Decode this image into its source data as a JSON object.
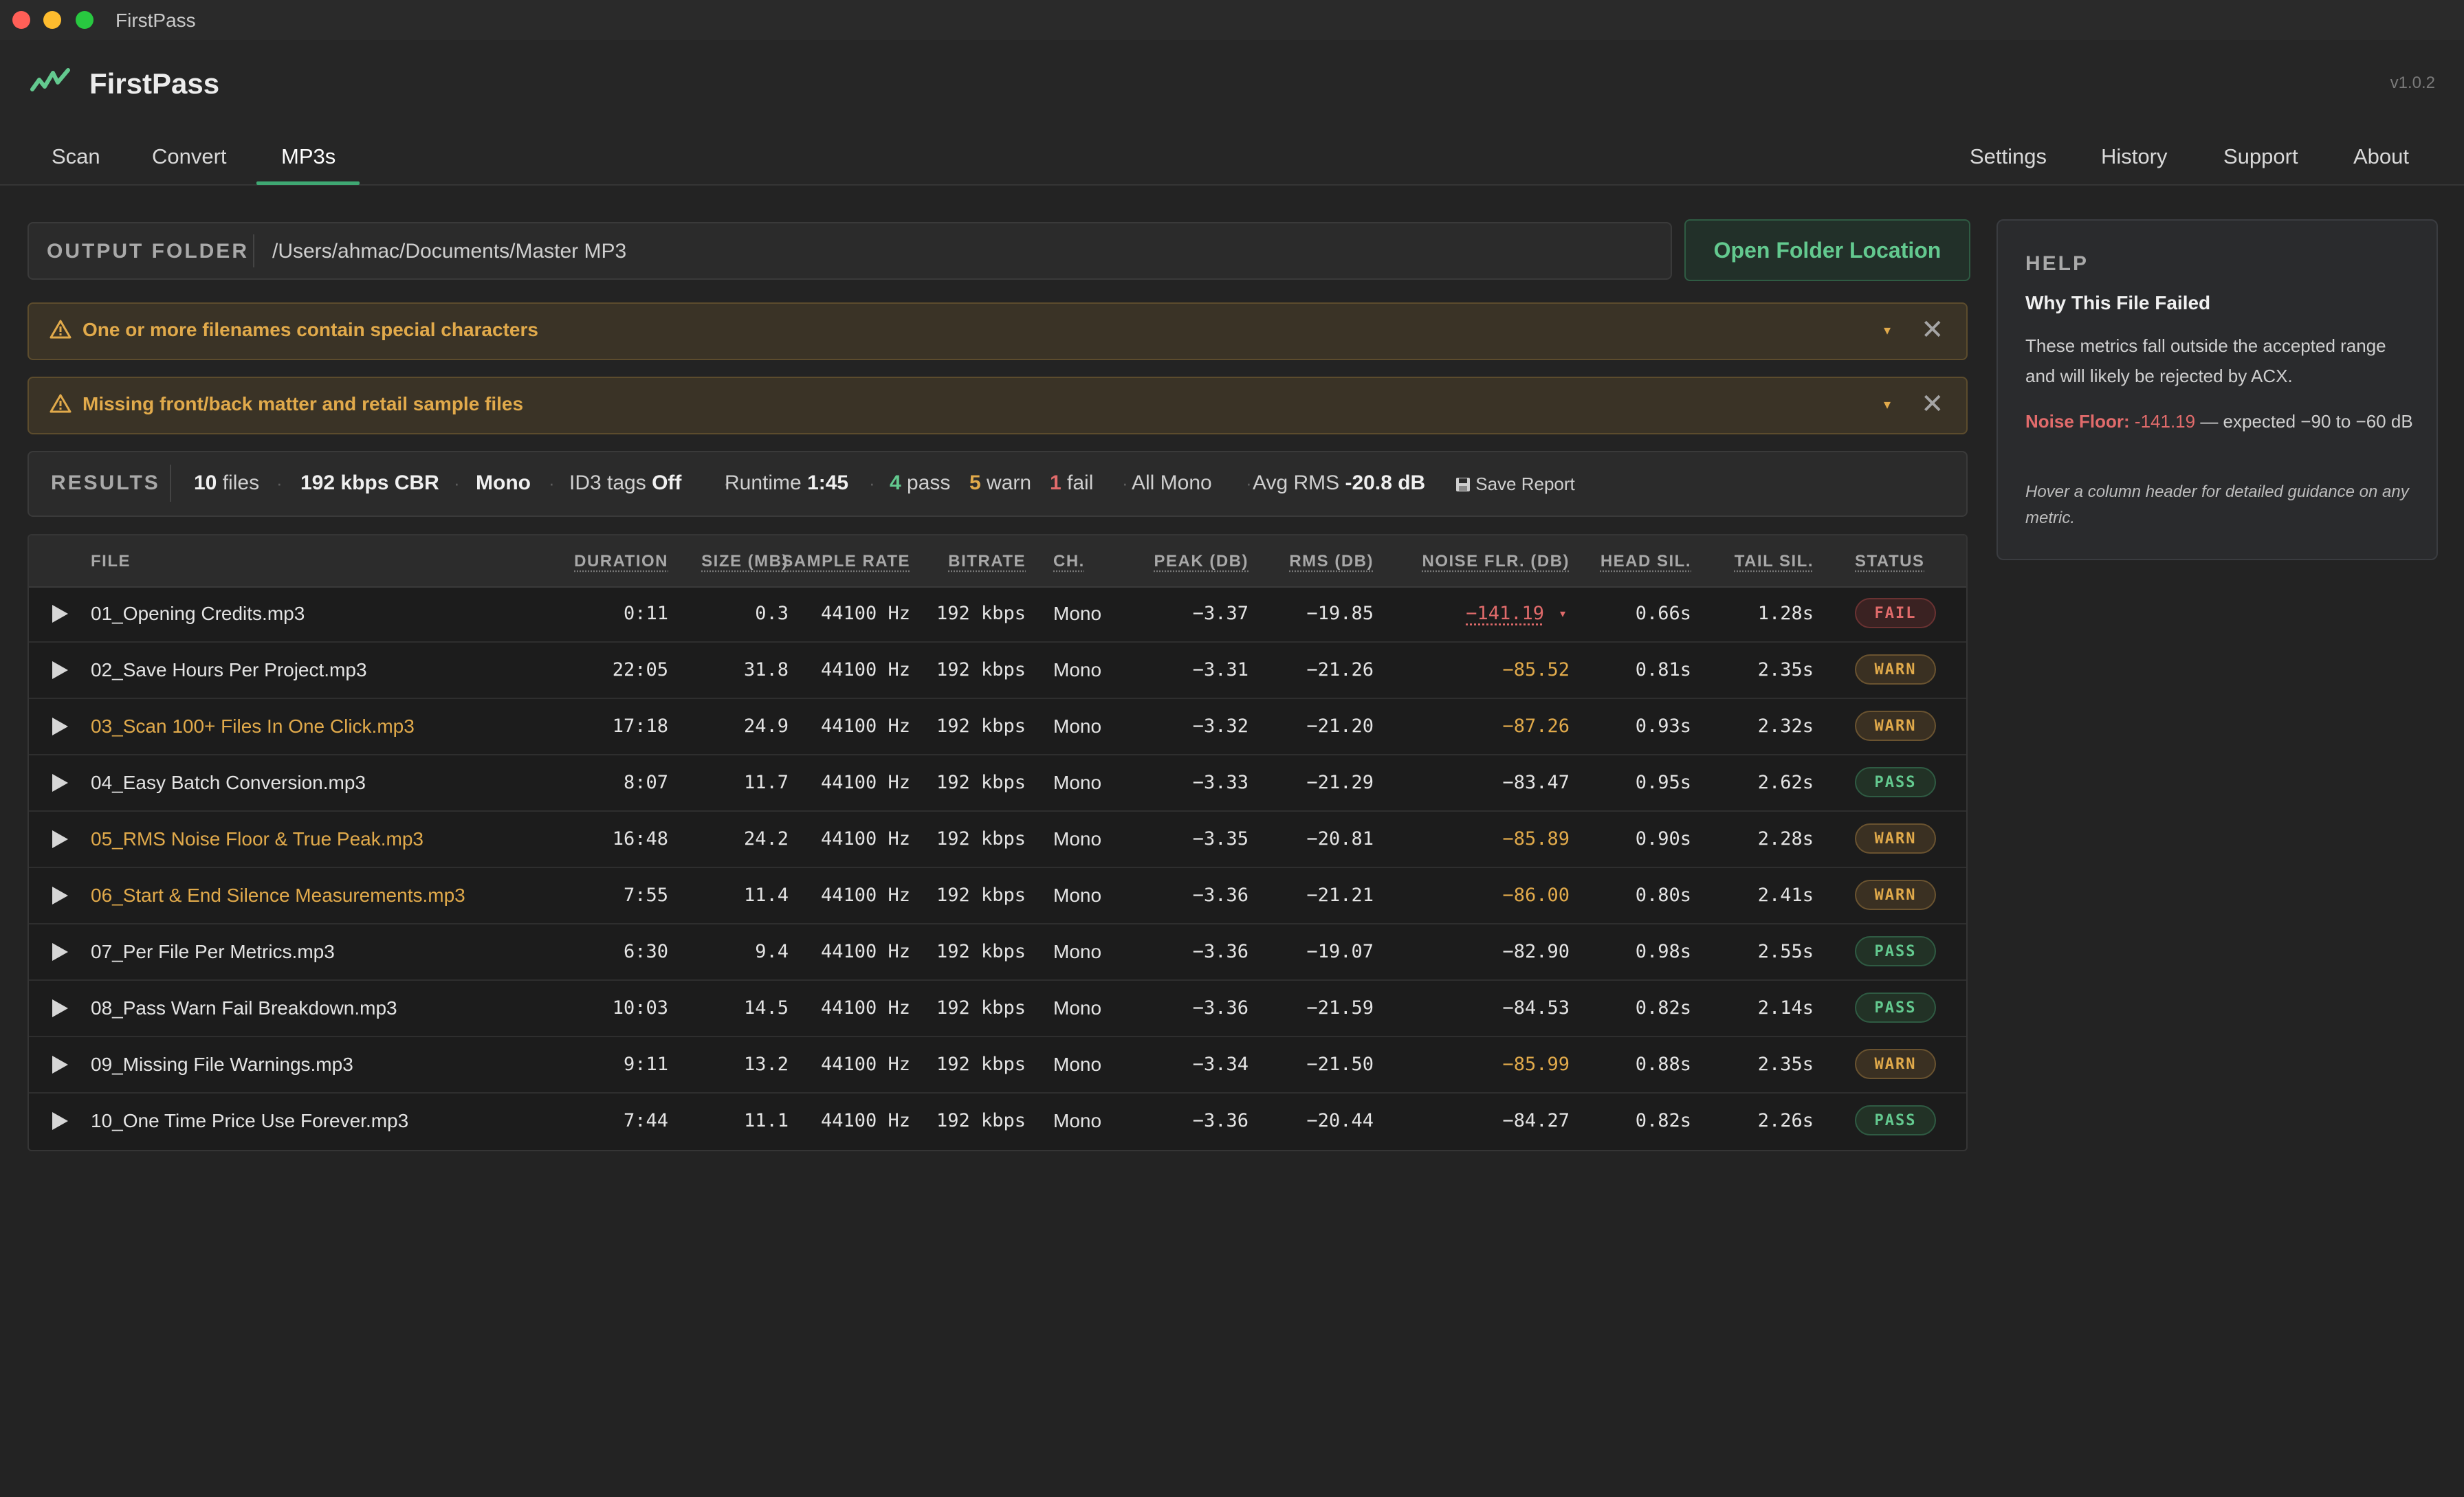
{
  "window": {
    "title": "FirstPass"
  },
  "app": {
    "name": "FirstPass",
    "version": "v1.0.2"
  },
  "tabs": {
    "left": [
      {
        "label": "Scan"
      },
      {
        "label": "Convert"
      },
      {
        "label": "MP3s",
        "active": true
      }
    ],
    "right": [
      {
        "label": "Settings"
      },
      {
        "label": "History"
      },
      {
        "label": "Support"
      },
      {
        "label": "About"
      }
    ]
  },
  "output_folder": {
    "label": "OUTPUT FOLDER",
    "path": "/Users/ahmac/Documents/Master MP3",
    "open_button": "Open Folder Location"
  },
  "warnings": [
    {
      "text": "One or more filenames contain special characters",
      "caret": "▾",
      "close": "✕"
    },
    {
      "text": "Missing front/back matter and retail sample files",
      "caret": "▾",
      "close": "✕"
    }
  ],
  "results": {
    "label": "RESULTS",
    "files_count": "10",
    "files_word": "files",
    "bitrate": "192 kbps CBR",
    "channels": "Mono",
    "id3_label": "ID3 tags",
    "id3_value": "Off",
    "runtime_label": "Runtime",
    "runtime_value": "1:45",
    "pass_count": "4",
    "pass_word": "pass",
    "warn_count": "5",
    "warn_word": "warn",
    "fail_count": "1",
    "fail_word": "fail",
    "all_mono": "All Mono",
    "avg_rms_label": "Avg RMS",
    "avg_rms_value": "-20.8 dB",
    "save_report": "Save Report"
  },
  "table": {
    "headers": {
      "file": "FILE",
      "duration": "DURATION",
      "size": "SIZE (MB)",
      "sample_rate": "SAMPLE RATE",
      "bitrate": "BITRATE",
      "ch": "CH.",
      "peak": "PEAK (DB)",
      "rms": "RMS (DB)",
      "noise": "NOISE FLR. (DB)",
      "head": "HEAD SIL.",
      "tail": "TAIL SIL.",
      "status": "STATUS"
    },
    "rows": [
      {
        "file": "01_Opening Credits.mp3",
        "duration": "0:11",
        "size": "0.3",
        "sample_rate": "44100 Hz",
        "bitrate": "192 kbps",
        "ch": "Mono",
        "peak": "−3.37",
        "rms": "−19.85",
        "noise": "−141.19",
        "noise_caret": "▾",
        "head": "0.66s",
        "tail": "1.28s",
        "status": "FAIL",
        "flagged_name": false
      },
      {
        "file": "02_Save Hours Per Project.mp3",
        "duration": "22:05",
        "size": "31.8",
        "sample_rate": "44100 Hz",
        "bitrate": "192 kbps",
        "ch": "Mono",
        "peak": "−3.31",
        "rms": "−21.26",
        "noise": "−85.52",
        "head": "0.81s",
        "tail": "2.35s",
        "status": "WARN",
        "flagged_name": false
      },
      {
        "file": "03_Scan 100+ Files In One Click.mp3",
        "duration": "17:18",
        "size": "24.9",
        "sample_rate": "44100 Hz",
        "bitrate": "192 kbps",
        "ch": "Mono",
        "peak": "−3.32",
        "rms": "−21.20",
        "noise": "−87.26",
        "head": "0.93s",
        "tail": "2.32s",
        "status": "WARN",
        "flagged_name": true
      },
      {
        "file": "04_Easy Batch Conversion.mp3",
        "duration": "8:07",
        "size": "11.7",
        "sample_rate": "44100 Hz",
        "bitrate": "192 kbps",
        "ch": "Mono",
        "peak": "−3.33",
        "rms": "−21.29",
        "noise": "−83.47",
        "head": "0.95s",
        "tail": "2.62s",
        "status": "PASS",
        "flagged_name": false
      },
      {
        "file": "05_RMS Noise Floor & True Peak.mp3",
        "duration": "16:48",
        "size": "24.2",
        "sample_rate": "44100 Hz",
        "bitrate": "192 kbps",
        "ch": "Mono",
        "peak": "−3.35",
        "rms": "−20.81",
        "noise": "−85.89",
        "head": "0.90s",
        "tail": "2.28s",
        "status": "WARN",
        "flagged_name": true
      },
      {
        "file": "06_Start & End Silence Measurements.mp3",
        "duration": "7:55",
        "size": "11.4",
        "sample_rate": "44100 Hz",
        "bitrate": "192 kbps",
        "ch": "Mono",
        "peak": "−3.36",
        "rms": "−21.21",
        "noise": "−86.00",
        "head": "0.80s",
        "tail": "2.41s",
        "status": "WARN",
        "flagged_name": true
      },
      {
        "file": "07_Per File Per Metrics.mp3",
        "duration": "6:30",
        "size": "9.4",
        "sample_rate": "44100 Hz",
        "bitrate": "192 kbps",
        "ch": "Mono",
        "peak": "−3.36",
        "rms": "−19.07",
        "noise": "−82.90",
        "head": "0.98s",
        "tail": "2.55s",
        "status": "PASS",
        "flagged_name": false
      },
      {
        "file": "08_Pass Warn Fail Breakdown.mp3",
        "duration": "10:03",
        "size": "14.5",
        "sample_rate": "44100 Hz",
        "bitrate": "192 kbps",
        "ch": "Mono",
        "peak": "−3.36",
        "rms": "−21.59",
        "noise": "−84.53",
        "head": "0.82s",
        "tail": "2.14s",
        "status": "PASS",
        "flagged_name": false
      },
      {
        "file": "09_Missing File Warnings.mp3",
        "duration": "9:11",
        "size": "13.2",
        "sample_rate": "44100 Hz",
        "bitrate": "192 kbps",
        "ch": "Mono",
        "peak": "−3.34",
        "rms": "−21.50",
        "noise": "−85.99",
        "head": "0.88s",
        "tail": "2.35s",
        "status": "WARN",
        "flagged_name": false
      },
      {
        "file": "10_One Time Price Use Forever.mp3",
        "duration": "7:44",
        "size": "11.1",
        "sample_rate": "44100 Hz",
        "bitrate": "192 kbps",
        "ch": "Mono",
        "peak": "−3.36",
        "rms": "−20.44",
        "noise": "−84.27",
        "head": "0.82s",
        "tail": "2.26s",
        "status": "PASS",
        "flagged_name": false
      }
    ]
  },
  "help": {
    "title": "HELP",
    "subtitle": "Why This File Failed",
    "body": "These metrics fall outside the accepted range and will likely be rejected by ACX.",
    "metric_label": "Noise Floor:",
    "metric_value": "-141.19",
    "metric_expected": "— expected −90 to −60 dB",
    "hint": "Hover a column header for detailed guidance on any metric."
  },
  "colors": {
    "accent_green": "#63c98f",
    "warn_amber": "#e1aa4b",
    "fail_red": "#e16b6b",
    "background": "#232323"
  },
  "icons": [
    "app-logo-icon",
    "warning-triangle-icon",
    "close-icon",
    "chevron-down-icon",
    "play-icon",
    "save-disk-icon"
  ]
}
